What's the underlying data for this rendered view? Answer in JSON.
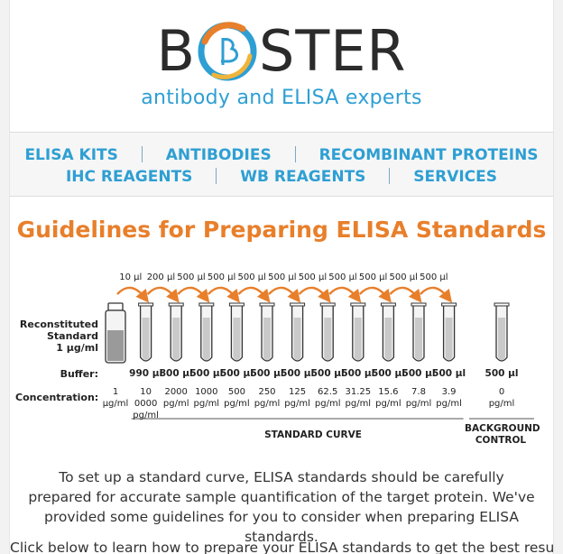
{
  "brand": {
    "logo_prefix": "B",
    "logo_suffix": "STER",
    "tagline": "antibody and ELISA experts",
    "colors": {
      "dark": "#2b2b2b",
      "blue": "#2e9fd3",
      "orange": "#e87f2b"
    }
  },
  "nav": {
    "row1": [
      "ELISA KITS",
      "ANTIBODIES",
      "RECOMBINANT PROTEINS"
    ],
    "row2": [
      "IHC REAGENTS",
      "WB REAGENTS",
      "SERVICES"
    ]
  },
  "title": "Guidelines for Preparing ELISA Standards",
  "diagram": {
    "transfers": [
      "10 µl",
      "200 µl",
      "500 µl",
      "500 µl",
      "500 µl",
      "500 µl",
      "500 µl",
      "500 µl",
      "500 µl",
      "500 µl",
      "500 µl"
    ],
    "reconstituted_label": [
      "Reconstituted",
      "Standard",
      "1 µg/ml"
    ],
    "buffer_label": "Buffer:",
    "concentration_label": "Concentration:",
    "buffer_values": [
      "990 µl",
      "800 µl",
      "500 µl",
      "500 µl",
      "500 µl",
      "500 µl",
      "500 µl",
      "500 µl",
      "500 µl",
      "500 µl",
      "500 µl"
    ],
    "concentrations": [
      {
        "value": "1",
        "unit": "µg/ml"
      },
      {
        "value": "10 0000",
        "unit": "pg/ml"
      },
      {
        "value": "2000",
        "unit": "pg/ml"
      },
      {
        "value": "1000",
        "unit": "pg/ml"
      },
      {
        "value": "500",
        "unit": "pg/ml"
      },
      {
        "value": "250",
        "unit": "pg/ml"
      },
      {
        "value": "125",
        "unit": "pg/ml"
      },
      {
        "value": "62.5",
        "unit": "pg/ml"
      },
      {
        "value": "31.25",
        "unit": "pg/ml"
      },
      {
        "value": "15.6",
        "unit": "pg/ml"
      },
      {
        "value": "7.8",
        "unit": "pg/ml"
      },
      {
        "value": "3.9",
        "unit": "pg/ml"
      }
    ],
    "background_buffer": "500 µl",
    "background_conc": {
      "value": "0",
      "unit": "pg/ml"
    },
    "standard_curve_label": "STANDARD CURVE",
    "background_label": [
      "BACKGROUND",
      "CONTROL"
    ]
  },
  "intro": "To set up a standard curve, ELISA standards should be carefully prepared for accurate sample quantification of the target protein. We've provided some guidelines for you to consider when preparing ELISA standards.",
  "cta": "Click below to learn how to prepare your ELISA standards to get the best results."
}
